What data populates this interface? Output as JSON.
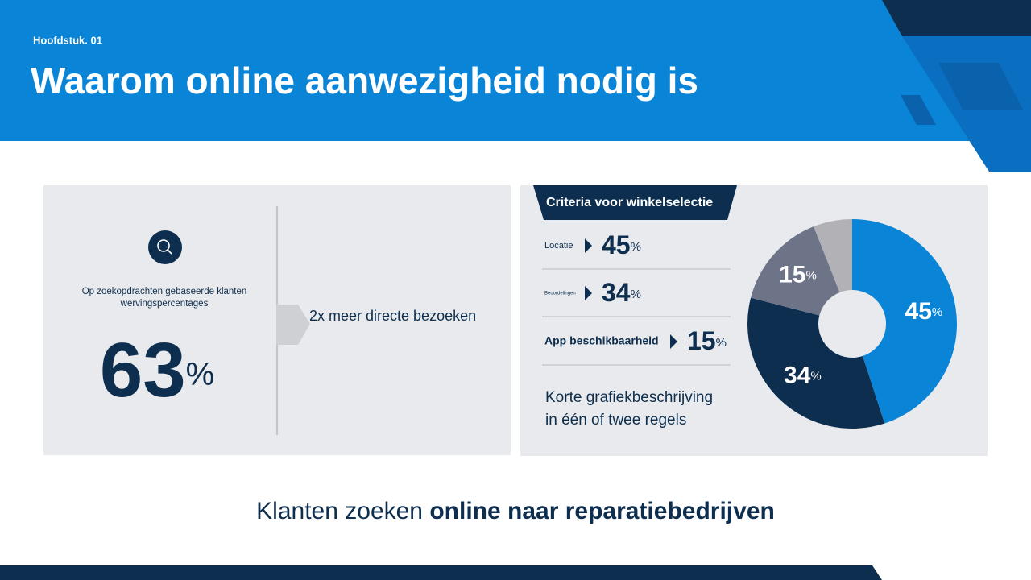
{
  "header": {
    "chapter": "Hoofdstuk. 01",
    "title": "Waarom online aanwezigheid nodig is"
  },
  "left_panel": {
    "description_lines": [
      "Op zoekopdrachten gebaseerde klanten",
      "wervingspercentages"
    ],
    "value": 63,
    "unit": "%",
    "note": "2x meer directe bezoeken"
  },
  "right_panel": {
    "title": "Criteria voor winkelselectie",
    "criteria": [
      {
        "label": "Locatie",
        "value": 45
      },
      {
        "label": "Beoordelingen",
        "value": 34
      },
      {
        "label": "App beschikbaarheid",
        "value": 15
      }
    ],
    "unit": "%",
    "caption_lines": [
      "Korte grafiekbeschrijving",
      " in één of twee regels"
    ]
  },
  "chart_data": {
    "type": "pie",
    "values": [
      45,
      34,
      15,
      6
    ],
    "value_labels": [
      "45",
      "34",
      "15",
      null
    ],
    "unit": "%",
    "colors": [
      "#0a84d6",
      "#0d2e4e",
      "#6e7488",
      "#b2b2b6"
    ]
  },
  "footer": {
    "text": "Klanten zoeken",
    "text_bold": "online naar reparatiebedrijven"
  }
}
